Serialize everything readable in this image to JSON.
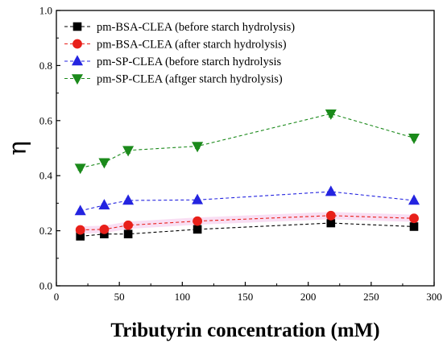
{
  "chart_data": {
    "type": "line",
    "title": "",
    "xlabel": "Tributyrin concentration (mM)",
    "ylabel": "η",
    "xlim": [
      0,
      300
    ],
    "ylim": [
      0.0,
      1.0
    ],
    "x_ticks": [
      0,
      50,
      100,
      150,
      200,
      250,
      300
    ],
    "y_ticks": [
      0.0,
      0.2,
      0.4,
      0.6,
      0.8,
      1.0
    ],
    "grid": false,
    "legend_position": "top-left",
    "x": [
      19,
      38,
      57,
      112,
      218,
      284
    ],
    "series": [
      {
        "name": "pm-BSA-CLEA (before starch hydrolysis)",
        "marker": "square",
        "color": "#000000",
        "values": [
          0.18,
          0.188,
          0.188,
          0.205,
          0.228,
          0.215
        ],
        "error": [
          0.005,
          0.005,
          0.005,
          0.005,
          0.006,
          0.005
        ]
      },
      {
        "name": "pm-BSA-CLEA (after starch hydrolysis)",
        "marker": "circle",
        "color": "#e8201a",
        "values": [
          0.203,
          0.205,
          0.22,
          0.235,
          0.255,
          0.245
        ],
        "error": [
          0.008,
          0.008,
          0.01,
          0.008,
          0.008,
          0.008
        ]
      },
      {
        "name": "pm-SP-CLEA (before starch hydrolysis",
        "marker": "triangle-up",
        "color": "#2424e0",
        "values": [
          0.272,
          0.293,
          0.31,
          0.312,
          0.342,
          0.31
        ],
        "error": [
          0.006,
          0.006,
          0.006,
          0.006,
          0.006,
          0.006
        ]
      },
      {
        "name": "pm-SP-CLEA (aftger starch hydrolysis)",
        "marker": "triangle-down",
        "color": "#1b8a1b",
        "values": [
          0.428,
          0.448,
          0.492,
          0.507,
          0.625,
          0.537
        ],
        "error": [
          0.008,
          0.008,
          0.01,
          0.008,
          0.012,
          0.008
        ]
      }
    ]
  }
}
